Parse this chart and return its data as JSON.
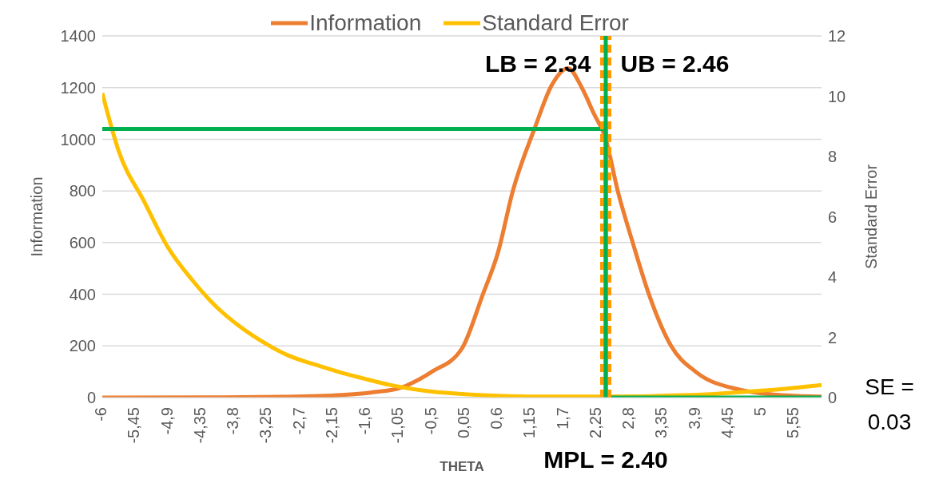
{
  "chart_data": {
    "type": "line",
    "xlabel": "THETA",
    "ylabel": "Information",
    "y2label": "Standard Error",
    "xlim": [
      -6,
      6
    ],
    "xticks": [
      -6,
      {
        "value": -5.45,
        "label": "-5,45"
      },
      {
        "value": -4.9,
        "label": "-4,9"
      },
      {
        "value": -4.35,
        "label": "-4,35"
      },
      {
        "value": -3.8,
        "label": "-3,8"
      },
      {
        "value": -3.25,
        "label": "-3,25"
      },
      {
        "value": -2.7,
        "label": "-2,7"
      },
      {
        "value": -2.15,
        "label": "-2,15"
      },
      {
        "value": -1.6,
        "label": "-1,6"
      },
      {
        "value": -1.05,
        "label": "-1,05"
      },
      {
        "value": -0.5,
        "label": "-0,5"
      },
      {
        "value": 0.05,
        "label": "0,05"
      },
      {
        "value": 0.6,
        "label": "0,6"
      },
      {
        "value": 1.15,
        "label": "1,15"
      },
      {
        "value": 1.7,
        "label": "1,7"
      },
      {
        "value": 2.25,
        "label": "2,25"
      },
      {
        "value": 2.8,
        "label": "2,8"
      },
      {
        "value": 3.35,
        "label": "3,35"
      },
      {
        "value": 3.9,
        "label": "3,9"
      },
      {
        "value": 4.45,
        "label": "4,45"
      },
      5,
      {
        "value": 5.55,
        "label": "5,55"
      }
    ],
    "ylim": [
      0,
      1400
    ],
    "yticks": [
      0,
      200,
      400,
      600,
      800,
      1000,
      1200,
      1400
    ],
    "y2lim": [
      0,
      12
    ],
    "y2ticks": [
      0,
      2,
      4,
      6,
      8,
      10,
      12
    ],
    "grid": "y",
    "legend": "top",
    "marker": "none",
    "line_style": "solid",
    "series": [
      {
        "name": "Information",
        "color": "#ed7d31",
        "x": [
          -6,
          -4,
          -3,
          -2,
          -1.5,
          -1,
          -0.5,
          0,
          0.35,
          0.6,
          0.85,
          1.21,
          1.5,
          1.77,
          2,
          2.2,
          2.4,
          2.6,
          2.85,
          3.12,
          3.49,
          3.9,
          4.64,
          5.2,
          6
        ],
        "values": [
          0,
          1,
          3,
          10,
          20,
          40,
          100,
          190,
          400,
          560,
          800,
          1040,
          1210,
          1275,
          1200,
          1100,
          1000,
          800,
          600,
          400,
          200,
          100,
          30,
          12,
          4
        ]
      },
      {
        "name": "Standard Error",
        "color": "#ffc000",
        "axis": "y2",
        "x": [
          -6,
          -5.73,
          -5.3,
          -4.91,
          -4.5,
          -4.09,
          -3.7,
          -3.28,
          -2.9,
          -2.46,
          -2,
          -1.65,
          -1.2,
          -0.5,
          0,
          0.6,
          1.2,
          1.77,
          2.4,
          3,
          3.5,
          4,
          4.64,
          5.2,
          5.6,
          6
        ],
        "values": [
          10.1,
          8.2,
          6.5,
          5.0,
          3.9,
          3.0,
          2.35,
          1.8,
          1.4,
          1.1,
          0.82,
          0.64,
          0.42,
          0.2,
          0.12,
          0.06,
          0.03,
          0.03,
          0.03,
          0.04,
          0.07,
          0.1,
          0.18,
          0.26,
          0.33,
          0.42
        ]
      },
      {
        "color": "#00b050",
        "x": [
          -6,
          2.4,
          2.4,
          6
        ],
        "values": [
          1040,
          1040,
          0,
          0
        ]
      }
    ],
    "ref_lines": [
      {
        "axis": "x",
        "value": 2.34,
        "label": "LB = 2.34",
        "color": "#ff9900",
        "line_style": "dashed"
      },
      {
        "axis": "x",
        "value": 2.46,
        "label": "UB = 2.46",
        "color": "#ff9900",
        "line_style": "dashed"
      },
      {
        "axis": "x",
        "value": 2.4,
        "label": "MPL = 2.40",
        "color": "#00b050",
        "line_style": "solid"
      }
    ],
    "annotations": [
      "SE = 0.03"
    ]
  }
}
